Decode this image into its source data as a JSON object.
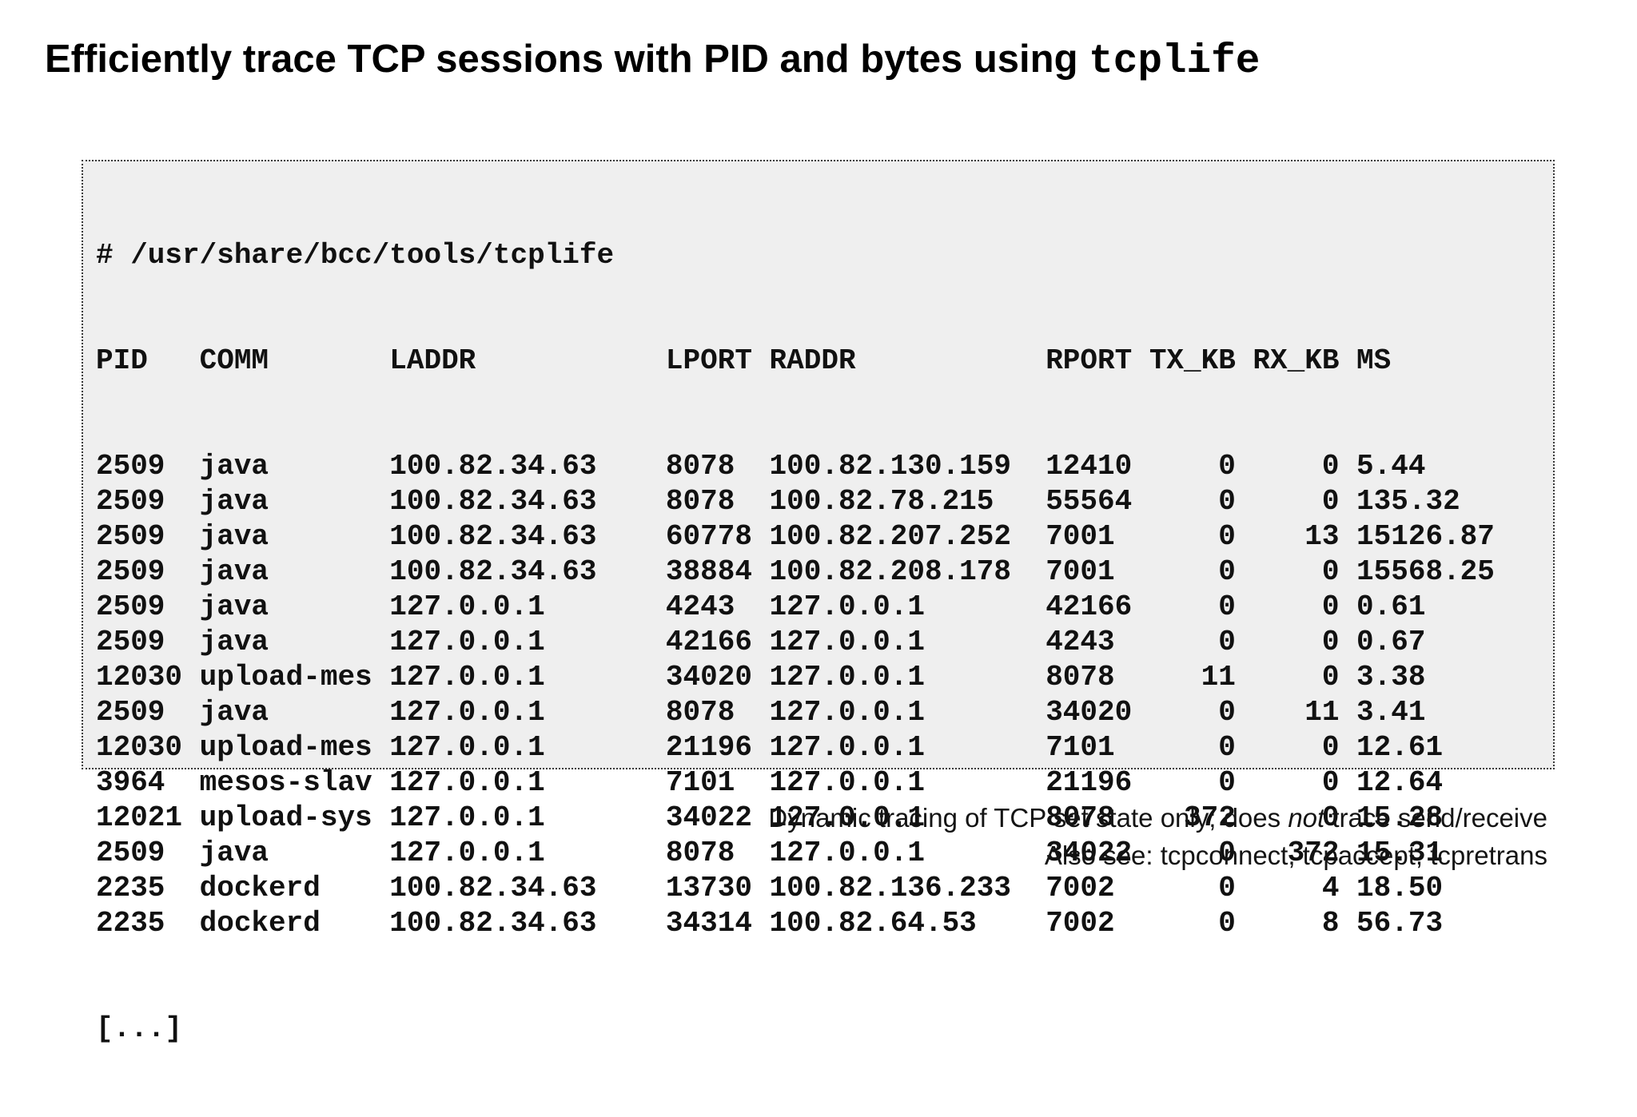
{
  "title": {
    "text": "Efficiently trace TCP sessions with PID and bytes using ",
    "code": "tcplife"
  },
  "terminal": {
    "command": "# /usr/share/bcc/tools/tcplife",
    "columns": [
      "PID",
      "COMM",
      "LADDR",
      "LPORT",
      "RADDR",
      "RPORT",
      "TX_KB",
      "RX_KB",
      "MS"
    ],
    "rows": [
      {
        "pid": "2509",
        "comm": "java",
        "laddr": "100.82.34.63",
        "lport": "8078",
        "raddr": "100.82.130.159",
        "rport": "12410",
        "tx_kb": "0",
        "rx_kb": "0",
        "ms": "5.44"
      },
      {
        "pid": "2509",
        "comm": "java",
        "laddr": "100.82.34.63",
        "lport": "8078",
        "raddr": "100.82.78.215",
        "rport": "55564",
        "tx_kb": "0",
        "rx_kb": "0",
        "ms": "135.32"
      },
      {
        "pid": "2509",
        "comm": "java",
        "laddr": "100.82.34.63",
        "lport": "60778",
        "raddr": "100.82.207.252",
        "rport": "7001",
        "tx_kb": "0",
        "rx_kb": "13",
        "ms": "15126.87"
      },
      {
        "pid": "2509",
        "comm": "java",
        "laddr": "100.82.34.63",
        "lport": "38884",
        "raddr": "100.82.208.178",
        "rport": "7001",
        "tx_kb": "0",
        "rx_kb": "0",
        "ms": "15568.25"
      },
      {
        "pid": "2509",
        "comm": "java",
        "laddr": "127.0.0.1",
        "lport": "4243",
        "raddr": "127.0.0.1",
        "rport": "42166",
        "tx_kb": "0",
        "rx_kb": "0",
        "ms": "0.61"
      },
      {
        "pid": "2509",
        "comm": "java",
        "laddr": "127.0.0.1",
        "lport": "42166",
        "raddr": "127.0.0.1",
        "rport": "4243",
        "tx_kb": "0",
        "rx_kb": "0",
        "ms": "0.67"
      },
      {
        "pid": "12030",
        "comm": "upload-mes",
        "laddr": "127.0.0.1",
        "lport": "34020",
        "raddr": "127.0.0.1",
        "rport": "8078",
        "tx_kb": "11",
        "rx_kb": "0",
        "ms": "3.38"
      },
      {
        "pid": "2509",
        "comm": "java",
        "laddr": "127.0.0.1",
        "lport": "8078",
        "raddr": "127.0.0.1",
        "rport": "34020",
        "tx_kb": "0",
        "rx_kb": "11",
        "ms": "3.41"
      },
      {
        "pid": "12030",
        "comm": "upload-mes",
        "laddr": "127.0.0.1",
        "lport": "21196",
        "raddr": "127.0.0.1",
        "rport": "7101",
        "tx_kb": "0",
        "rx_kb": "0",
        "ms": "12.61"
      },
      {
        "pid": "3964",
        "comm": "mesos-slav",
        "laddr": "127.0.0.1",
        "lport": "7101",
        "raddr": "127.0.0.1",
        "rport": "21196",
        "tx_kb": "0",
        "rx_kb": "0",
        "ms": "12.64"
      },
      {
        "pid": "12021",
        "comm": "upload-sys",
        "laddr": "127.0.0.1",
        "lport": "34022",
        "raddr": "127.0.0.1",
        "rport": "8078",
        "tx_kb": "372",
        "rx_kb": "0",
        "ms": "15.28"
      },
      {
        "pid": "2509",
        "comm": "java",
        "laddr": "127.0.0.1",
        "lport": "8078",
        "raddr": "127.0.0.1",
        "rport": "34022",
        "tx_kb": "0",
        "rx_kb": "372",
        "ms": "15.31"
      },
      {
        "pid": "2235",
        "comm": "dockerd",
        "laddr": "100.82.34.63",
        "lport": "13730",
        "raddr": "100.82.136.233",
        "rport": "7002",
        "tx_kb": "0",
        "rx_kb": "4",
        "ms": "18.50"
      },
      {
        "pid": "2235",
        "comm": "dockerd",
        "laddr": "100.82.34.63",
        "lport": "34314",
        "raddr": "100.82.64.53",
        "rport": "7002",
        "tx_kb": "0",
        "rx_kb": "8",
        "ms": "56.73"
      }
    ],
    "truncation": "[...]"
  },
  "footer": {
    "line1_before_italic": "Dynamic tracing of TCP set state only; does ",
    "line1_italic": "not",
    "line1_after_italic": " trace send/receive",
    "line2": "Also see: tcpconnect, tcpaccept, tcpretrans"
  },
  "colors": {
    "page_background": "#ffffff",
    "box_background": "#efefef",
    "box_border": "#3a3a3a",
    "text": "#111111"
  }
}
